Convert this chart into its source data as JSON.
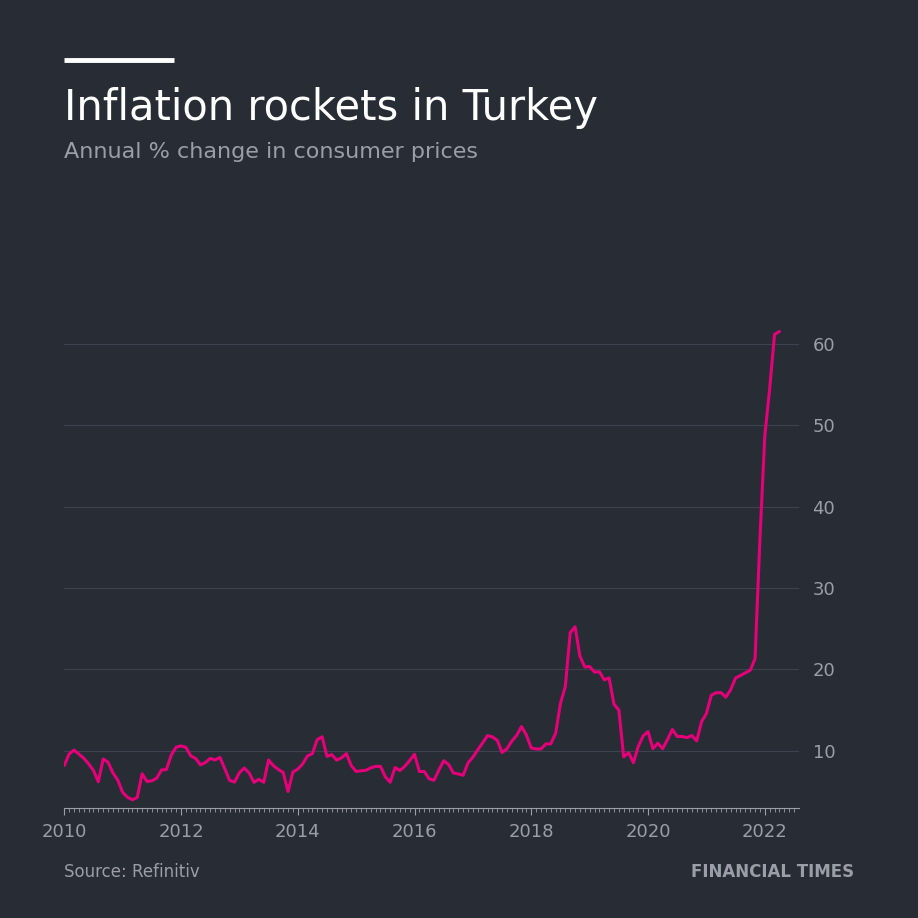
{
  "title": "Inflation rockets in Turkey",
  "subtitle": "Annual % change in consumer prices",
  "source": "Source: Refinitiv",
  "branding": "FINANCIAL TIMES",
  "background_color": "#282c35",
  "line_color": "#e6007a",
  "grid_color": "#3d4250",
  "text_color": "#ffffff",
  "muted_text_color": "#9b9ea8",
  "title_bar_color": "#ffffff",
  "ylim": [
    3,
    65
  ],
  "yticks": [
    10,
    20,
    30,
    40,
    50,
    60
  ],
  "xlim_start": 2010.0,
  "xlim_end": 2022.58,
  "dates": [
    2010.0,
    2010.083,
    2010.167,
    2010.25,
    2010.333,
    2010.417,
    2010.5,
    2010.583,
    2010.667,
    2010.75,
    2010.833,
    2010.917,
    2011.0,
    2011.083,
    2011.167,
    2011.25,
    2011.333,
    2011.417,
    2011.5,
    2011.583,
    2011.667,
    2011.75,
    2011.833,
    2011.917,
    2012.0,
    2012.083,
    2012.167,
    2012.25,
    2012.333,
    2012.417,
    2012.5,
    2012.583,
    2012.667,
    2012.75,
    2012.833,
    2012.917,
    2013.0,
    2013.083,
    2013.167,
    2013.25,
    2013.333,
    2013.417,
    2013.5,
    2013.583,
    2013.667,
    2013.75,
    2013.833,
    2013.917,
    2014.0,
    2014.083,
    2014.167,
    2014.25,
    2014.333,
    2014.417,
    2014.5,
    2014.583,
    2014.667,
    2014.75,
    2014.833,
    2014.917,
    2015.0,
    2015.083,
    2015.167,
    2015.25,
    2015.333,
    2015.417,
    2015.5,
    2015.583,
    2015.667,
    2015.75,
    2015.833,
    2015.917,
    2016.0,
    2016.083,
    2016.167,
    2016.25,
    2016.333,
    2016.417,
    2016.5,
    2016.583,
    2016.667,
    2016.75,
    2016.833,
    2016.917,
    2017.0,
    2017.083,
    2017.167,
    2017.25,
    2017.333,
    2017.417,
    2017.5,
    2017.583,
    2017.667,
    2017.75,
    2017.833,
    2017.917,
    2018.0,
    2018.083,
    2018.167,
    2018.25,
    2018.333,
    2018.417,
    2018.5,
    2018.583,
    2018.667,
    2018.75,
    2018.833,
    2018.917,
    2019.0,
    2019.083,
    2019.167,
    2019.25,
    2019.333,
    2019.417,
    2019.5,
    2019.583,
    2019.667,
    2019.75,
    2019.833,
    2019.917,
    2020.0,
    2020.083,
    2020.167,
    2020.25,
    2020.333,
    2020.417,
    2020.5,
    2020.583,
    2020.667,
    2020.75,
    2020.833,
    2020.917,
    2021.0,
    2021.083,
    2021.167,
    2021.25,
    2021.333,
    2021.417,
    2021.5,
    2021.583,
    2021.667,
    2021.75,
    2021.833,
    2021.917,
    2022.0,
    2022.083,
    2022.167,
    2022.25
  ],
  "values": [
    8.2,
    9.6,
    10.1,
    9.6,
    9.1,
    8.4,
    7.6,
    6.2,
    9.0,
    8.6,
    7.3,
    6.4,
    4.9,
    4.3,
    3.99,
    4.27,
    7.18,
    6.24,
    6.31,
    6.65,
    7.66,
    7.7,
    9.48,
    10.45,
    10.61,
    10.43,
    9.38,
    9.07,
    8.28,
    8.56,
    9.07,
    8.88,
    9.19,
    7.8,
    6.37,
    6.16,
    7.31,
    7.89,
    7.29,
    6.13,
    6.51,
    6.13,
    8.88,
    8.17,
    7.71,
    7.35,
    5.01,
    7.4,
    7.75,
    8.39,
    9.38,
    9.66,
    11.38,
    11.73,
    9.32,
    9.54,
    8.86,
    9.15,
    9.66,
    8.17,
    7.46,
    7.55,
    7.61,
    7.91,
    8.09,
    8.09,
    6.81,
    6.14,
    7.95,
    7.58,
    8.1,
    8.81,
    9.58,
    7.46,
    7.46,
    6.57,
    6.38,
    7.64,
    8.79,
    8.33,
    7.28,
    7.16,
    7.0,
    8.53,
    9.22,
    10.13,
    10.98,
    11.87,
    11.72,
    11.29,
    9.79,
    10.26,
    11.2,
    11.9,
    12.98,
    11.92,
    10.35,
    10.23,
    10.23,
    10.85,
    10.85,
    12.15,
    15.85,
    17.9,
    24.52,
    25.24,
    21.62,
    20.3,
    20.35,
    19.67,
    19.71,
    18.71,
    18.95,
    15.72,
    15.01,
    9.26,
    9.78,
    8.55,
    10.56,
    11.84,
    12.37,
    10.26,
    10.94,
    10.26,
    11.39,
    12.62,
    11.76,
    11.77,
    11.61,
    11.89,
    11.21,
    13.58,
    14.6,
    16.82,
    17.14,
    17.14,
    16.59,
    17.53,
    18.95,
    19.25,
    19.58,
    19.89,
    21.31,
    36.08,
    48.69,
    54.44,
    61.14,
    61.49
  ],
  "xtick_labels": [
    "2010",
    "2012",
    "2014",
    "2016",
    "2018",
    "2020",
    "2022"
  ],
  "xtick_positions": [
    2010,
    2012,
    2014,
    2016,
    2018,
    2020,
    2022
  ],
  "title_fontsize": 30,
  "subtitle_fontsize": 16,
  "tick_fontsize": 13,
  "source_fontsize": 12
}
